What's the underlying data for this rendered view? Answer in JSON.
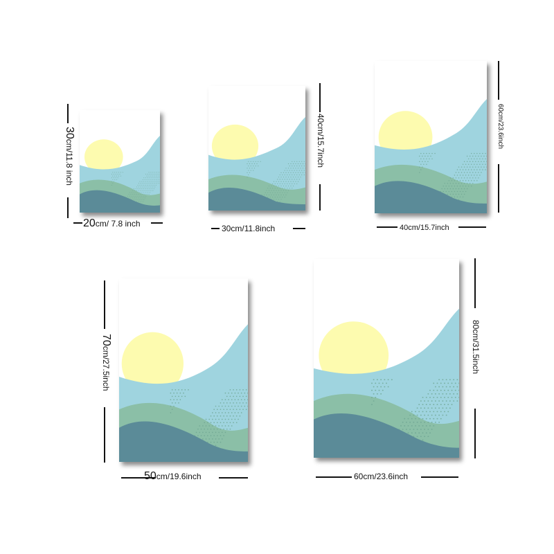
{
  "colors": {
    "sky": "#ffffff",
    "sun": "#fdfbaf",
    "light_blue": "#9fd4df",
    "sage": "#8bbfa7",
    "teal": "#5b8b98",
    "dots": "#6ea592",
    "shadow": "#555555"
  },
  "posters": [
    {
      "id": "20x30",
      "width_label": {
        "num": "20",
        "unit": "cm/ 7.8 inch"
      },
      "height_label": {
        "num": "30",
        "unit": "cm/11.8 inch"
      }
    },
    {
      "id": "30x40",
      "width_label": {
        "num": "30",
        "unit": "cm/11.8inch"
      },
      "height_label": {
        "num": "40",
        "unit": "cm/15.7inch"
      }
    },
    {
      "id": "40x60",
      "width_label": {
        "num": "40",
        "unit": "cm/15.7inch"
      },
      "height_label": {
        "num": "60",
        "unit": "cm/23.6inch"
      }
    },
    {
      "id": "50x70",
      "width_label": {
        "num": "50",
        "unit": "cm/19.6inch"
      },
      "height_label": {
        "num": "70",
        "unit": "cm/27.5inch"
      }
    },
    {
      "id": "60x80",
      "width_label": {
        "num": "60",
        "unit": "cm/23.6inch"
      },
      "height_label": {
        "num": "80",
        "unit": "cm/31.5inch"
      }
    }
  ]
}
